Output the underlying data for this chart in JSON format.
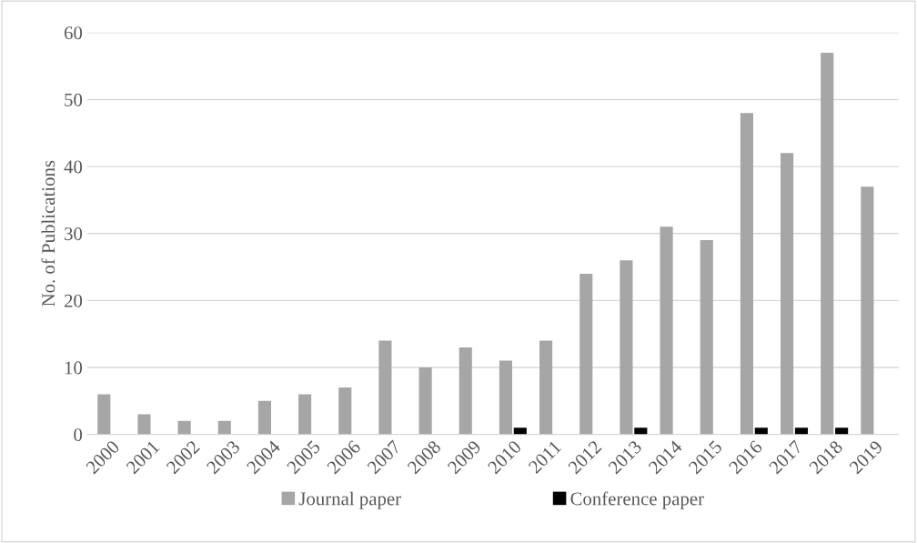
{
  "chart_data": {
    "type": "bar",
    "ylabel": "No. of Publications",
    "categories": [
      "2000",
      "2001",
      "2002",
      "2003",
      "2004",
      "2005",
      "2006",
      "2007",
      "2008",
      "2009",
      "2010",
      "2011",
      "2012",
      "2013",
      "2014",
      "2015",
      "2016",
      "2017",
      "2018",
      "2019"
    ],
    "series": [
      {
        "name": "Journal paper",
        "color": "#a6a6a6",
        "values": [
          6,
          3,
          2,
          2,
          5,
          6,
          7,
          14,
          10,
          13,
          11,
          14,
          24,
          26,
          31,
          29,
          48,
          42,
          57,
          37
        ]
      },
      {
        "name": "Conference paper",
        "color": "#000000",
        "values": [
          0,
          0,
          0,
          0,
          0,
          0,
          0,
          0,
          0,
          0,
          1,
          0,
          0,
          1,
          0,
          0,
          1,
          1,
          1,
          0
        ]
      }
    ],
    "ylim": [
      0,
      60
    ],
    "yticks": [
      0,
      10,
      20,
      30,
      40,
      50,
      60
    ],
    "grid": "y",
    "legend": "bottom"
  }
}
